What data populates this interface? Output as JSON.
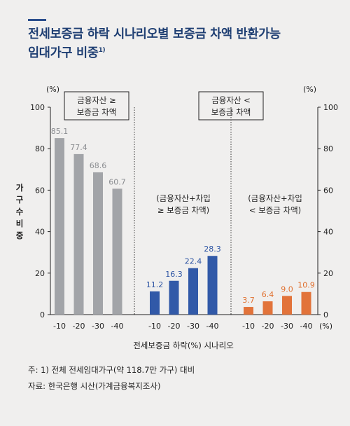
{
  "title": {
    "text": "전세보증금 하락 시나리오별 보증금 차액 반환가능 임대가구 비중",
    "line1": "전세보증금 하락 시나리오별 보증금 차액 반환가능",
    "line2": "임대가구 비중",
    "footnote_mark": "1)"
  },
  "notes": {
    "note1": "주: 1) 전체 전세임대가구(약 118.7만 가구) 대비",
    "source": "자료: 한국은행 시산(가계금융복지조사)"
  },
  "colors": {
    "title": "#1f3f73",
    "accent_bar": "#2b4e8c",
    "gray": "#a2a4a8",
    "blue": "#3159a8",
    "orange": "#e2733a",
    "background": "#f0efee"
  },
  "chart_data": {
    "type": "bar",
    "ylabel": "가구수비중",
    "yunit": "(%)",
    "ylim": [
      0,
      100
    ],
    "yticks": [
      0,
      20,
      40,
      60,
      80,
      100
    ],
    "xlabel": "전세보증금 하락(%) 시나리오",
    "xunit": "(%)",
    "groups": [
      {
        "label_line1": "금융자산 ≥",
        "label_line2": "보증금 차액",
        "color": "#a2a4a8",
        "label_color": "#8a8c90",
        "categories": [
          "-10",
          "-20",
          "-30",
          "-40"
        ],
        "values": [
          85.1,
          77.4,
          68.6,
          60.7
        ]
      },
      {
        "label_line1": "(금융자산+차입",
        "label_line2": "≥ 보증금 차액)",
        "color": "#3159a8",
        "label_color": "#2f56a4",
        "categories": [
          "-10",
          "-20",
          "-30",
          "-40"
        ],
        "values": [
          11.2,
          16.3,
          22.4,
          28.3
        ]
      },
      {
        "label_line1": "(금융자산+차입",
        "label_line2": "< 보증금 차액)",
        "color": "#e2733a",
        "label_color": "#e0702f",
        "categories": [
          "-10",
          "-20",
          "-30",
          "-40"
        ],
        "values": [
          3.7,
          6.4,
          9.0,
          10.9
        ]
      }
    ],
    "boxes": [
      {
        "line1": "금융자산 ≥",
        "line2": "보증금 차액"
      },
      {
        "line1": "금융자산 <",
        "line2": "보증금 차액"
      }
    ]
  }
}
